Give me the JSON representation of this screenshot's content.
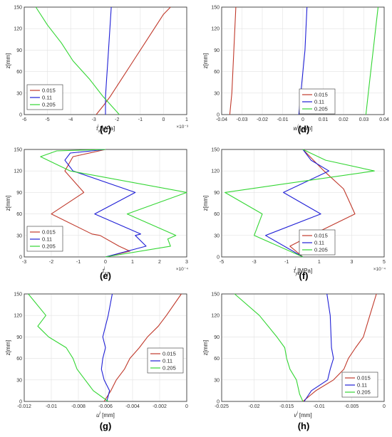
{
  "figure": {
    "legend_series": [
      "0.015",
      "0.11",
      "0.205"
    ],
    "series_colors": [
      "#c0392b",
      "#1f1fd6",
      "#33d633"
    ],
    "panels": [
      {
        "label": "(c)",
        "ylabel": "z[mm]",
        "xlabel_base": "τ",
        "xlabel_sup": "i",
        "xlabel_sub": "xy",
        "xlabel_unit": " [MPa]",
        "x_exponent": "×10⁻³"
      },
      {
        "label": "(d)",
        "ylabel": "z[mm]",
        "xlabel_base": "w",
        "xlabel_sup": "i",
        "xlabel_sub": "",
        "xlabel_unit": " [mm]",
        "x_exponent": ""
      },
      {
        "label": "(e)",
        "ylabel": "z[mm]",
        "xlabel_base": "τ",
        "xlabel_sup": "i",
        "xlabel_sub": "xz",
        "xlabel_unit": "",
        "x_exponent": "×10⁻⁴"
      },
      {
        "label": "(f)",
        "ylabel": "z[mm]",
        "xlabel_base": "τ",
        "xlabel_sup": "i",
        "xlabel_sub": "yz",
        "xlabel_unit": " [MPa]",
        "x_exponent": "×10⁻⁴"
      },
      {
        "label": "(g)",
        "ylabel": "z[mm]",
        "xlabel_base": "u",
        "xlabel_sup": "i",
        "xlabel_sub": "",
        "xlabel_unit": " [mm]",
        "x_exponent": ""
      },
      {
        "label": "(h)",
        "ylabel": "z[mm]",
        "xlabel_base": "v",
        "xlabel_sup": "i",
        "xlabel_sub": "",
        "xlabel_unit": " [mm]",
        "x_exponent": ""
      }
    ]
  },
  "chart_data": [
    {
      "type": "line",
      "panel": "(c)",
      "xlim": [
        -6,
        1
      ],
      "ylim": [
        0,
        150
      ],
      "xticks": [
        "-6",
        "-5",
        "-4",
        "-3",
        "-2",
        "-1",
        "0",
        "1"
      ],
      "yticks": [
        "0",
        "30",
        "60",
        "90",
        "120",
        "150"
      ],
      "grid": true,
      "legend_position": "bottom-left",
      "series": [
        {
          "name": "0.015",
          "x": [
            -2.9,
            -2.6,
            -2.3,
            -1.8,
            -1.3,
            -0.8,
            -0.4,
            0,
            0.3
          ],
          "y": [
            0,
            12,
            25,
            50,
            75,
            100,
            120,
            140,
            150
          ]
        },
        {
          "name": "0.11",
          "x": [
            -2.5,
            -2.5,
            -2.45,
            -2.4,
            -2.35,
            -2.3,
            -2.25
          ],
          "y": [
            0,
            25,
            50,
            75,
            100,
            125,
            150
          ]
        },
        {
          "name": "0.205",
          "x": [
            -1.9,
            -2.6,
            -3.2,
            -3.9,
            -4.4,
            -5.0,
            -5.5
          ],
          "y": [
            0,
            25,
            50,
            75,
            100,
            125,
            150
          ]
        }
      ]
    },
    {
      "type": "line",
      "panel": "(d)",
      "xlim": [
        -0.04,
        0.04
      ],
      "ylim": [
        0,
        150
      ],
      "xticks": [
        "-0.04",
        "-0.03",
        "-0.02",
        "-0.01",
        "0",
        "0.01",
        "0.02",
        "0.03",
        "0.04"
      ],
      "yticks": [
        "0",
        "30",
        "60",
        "90",
        "120",
        "150"
      ],
      "grid": true,
      "legend_position": "bottom-right",
      "series": [
        {
          "name": "0.015",
          "x": [
            -0.036,
            -0.035,
            -0.0345,
            -0.034,
            -0.0335,
            -0.033
          ],
          "y": [
            0,
            30,
            60,
            90,
            120,
            150
          ]
        },
        {
          "name": "0.11",
          "x": [
            -0.002,
            -0.001,
            0,
            0.001,
            0.0015,
            0.002
          ],
          "y": [
            0,
            30,
            60,
            90,
            120,
            150
          ]
        },
        {
          "name": "0.205",
          "x": [
            0.031,
            0.032,
            0.033,
            0.034,
            0.035,
            0.036,
            0.037
          ],
          "y": [
            0,
            25,
            50,
            75,
            100,
            125,
            150
          ]
        }
      ]
    },
    {
      "type": "line",
      "panel": "(e)",
      "xlim": [
        -3,
        3
      ],
      "ylim": [
        0,
        150
      ],
      "xticks": [
        "-3",
        "-2",
        "-1",
        "0",
        "1",
        "2",
        "3"
      ],
      "yticks": [
        "0",
        "30",
        "60",
        "90",
        "120",
        "150"
      ],
      "grid": true,
      "legend_position": "bottom-left",
      "series": [
        {
          "name": "0.015",
          "x": [
            0,
            0.9,
            0.5,
            -0.2,
            -0.5,
            -2.0,
            -0.8,
            -1.5,
            -1.2,
            0
          ],
          "y": [
            0,
            8,
            15,
            30,
            32,
            60,
            90,
            120,
            140,
            150
          ]
        },
        {
          "name": "0.11",
          "x": [
            0,
            1.5,
            1.1,
            1.3,
            -0.4,
            1.1,
            -1.2,
            -1.5,
            -1.3,
            0
          ],
          "y": [
            0,
            15,
            30,
            32,
            60,
            90,
            120,
            135,
            145,
            150
          ]
        },
        {
          "name": "0.205",
          "x": [
            0,
            2.4,
            2.3,
            2.6,
            0.8,
            3.0,
            -1.3,
            -2.4,
            -1.8,
            0
          ],
          "y": [
            0,
            15,
            25,
            30,
            60,
            90,
            120,
            140,
            148,
            150
          ]
        }
      ]
    },
    {
      "type": "line",
      "panel": "(f)",
      "xlim": [
        -5,
        5
      ],
      "ylim": [
        0,
        150
      ],
      "xticks": [
        "-5",
        "-3",
        "-1",
        "1",
        "3",
        "5"
      ],
      "yticks": [
        "0",
        "30",
        "60",
        "90",
        "120",
        "150"
      ],
      "grid": true,
      "legend_position": "bottom-right",
      "series": [
        {
          "name": "0.015",
          "x": [
            0,
            -0.8,
            0.5,
            3.2,
            2.7,
            2.5,
            1.3,
            0
          ],
          "y": [
            0,
            15,
            30,
            60,
            85,
            95,
            120,
            150
          ]
        },
        {
          "name": "0.11",
          "x": [
            0,
            -2.3,
            1.1,
            -1.2,
            1.6,
            0.5,
            0
          ],
          "y": [
            0,
            30,
            60,
            90,
            120,
            135,
            150
          ]
        },
        {
          "name": "0.205",
          "x": [
            0,
            -3.0,
            -2.5,
            -4.8,
            4.4,
            1.4,
            0
          ],
          "y": [
            0,
            30,
            60,
            90,
            120,
            135,
            150
          ]
        }
      ]
    },
    {
      "type": "line",
      "panel": "(g)",
      "xlim": [
        -0.012,
        0
      ],
      "ylim": [
        0,
        150
      ],
      "xticks": [
        "-0.012",
        "-0.01",
        "-0.008",
        "-0.006",
        "-0.004",
        "-0.002",
        "0"
      ],
      "yticks": [
        "0",
        "30",
        "60",
        "90",
        "120",
        "150"
      ],
      "grid": true,
      "legend_position": "middle-right",
      "series": [
        {
          "name": "0.015",
          "x": [
            -0.0061,
            -0.0056,
            -0.0052,
            -0.0046,
            -0.0042,
            -0.0035,
            -0.0029,
            -0.0021,
            -0.0015,
            -0.0004
          ],
          "y": [
            0,
            15,
            30,
            45,
            60,
            75,
            90,
            105,
            120,
            150
          ]
        },
        {
          "name": "0.11",
          "x": [
            -0.0059,
            -0.0057,
            -0.0061,
            -0.0063,
            -0.0062,
            -0.006,
            -0.0062,
            -0.0058,
            -0.0055
          ],
          "y": [
            0,
            15,
            30,
            45,
            60,
            75,
            90,
            120,
            150
          ]
        },
        {
          "name": "0.205",
          "x": [
            -0.0058,
            -0.0069,
            -0.0075,
            -0.0081,
            -0.0084,
            -0.0089,
            -0.0102,
            -0.011,
            -0.0104,
            -0.0117
          ],
          "y": [
            0,
            15,
            30,
            45,
            60,
            75,
            90,
            105,
            120,
            150
          ]
        }
      ]
    },
    {
      "type": "line",
      "panel": "(h)",
      "xlim": [
        -0.025,
        0
      ],
      "ylim": [
        0,
        150
      ],
      "xticks": [
        "-0.025",
        "-0.02",
        "-0.015",
        "-0.01",
        "-0.005",
        "0"
      ],
      "yticks": [
        "0",
        "30",
        "60",
        "90",
        "120",
        "150"
      ],
      "grid": true,
      "legend_position": "bottom-right",
      "series": [
        {
          "name": "0.015",
          "x": [
            -0.0125,
            -0.0105,
            -0.0078,
            -0.0062,
            -0.0055,
            -0.0044,
            -0.0032,
            -0.0022,
            -0.0012
          ],
          "y": [
            0,
            15,
            30,
            45,
            60,
            75,
            90,
            120,
            150
          ]
        },
        {
          "name": "0.11",
          "x": [
            -0.0123,
            -0.0112,
            -0.0087,
            -0.0083,
            -0.0078,
            -0.0081,
            -0.0083,
            -0.0088
          ],
          "y": [
            0,
            15,
            30,
            45,
            60,
            75,
            120,
            150
          ]
        },
        {
          "name": "0.205",
          "x": [
            -0.0125,
            -0.013,
            -0.0135,
            -0.0145,
            -0.015,
            -0.0153,
            -0.0165,
            -0.0192,
            -0.023
          ],
          "y": [
            0,
            10,
            30,
            45,
            60,
            75,
            90,
            120,
            150
          ]
        }
      ]
    }
  ]
}
